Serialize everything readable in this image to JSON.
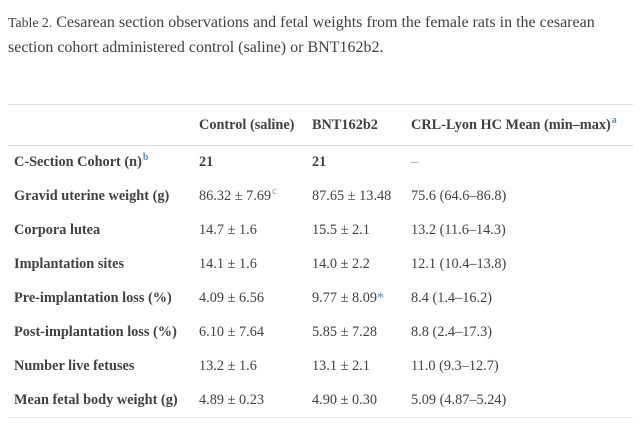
{
  "colors": {
    "accent_blue": "#4a94cc",
    "body_text": "#3e4247",
    "rule_gray": "#d2d5d9",
    "muted_dash": "#8f9499",
    "background": "#ffffff"
  },
  "title": {
    "label": "Table 2.",
    "text": "Cesarean section observations and fetal weights from the female rats in the cesarean section cohort administered control (saline) or BNT162b2."
  },
  "table": {
    "header": {
      "col1": "",
      "col2": "Control (saline)",
      "col3": "BNT162b2",
      "col4": "CRL-Lyon HC Mean (min–max)",
      "col4_sup": "a"
    },
    "rows": [
      {
        "label": "C-Section Cohort (n)",
        "label_sup": "b",
        "values": [
          {
            "text": "21",
            "bold": true
          },
          {
            "text": "21",
            "bold": true
          },
          {
            "text": "–",
            "muted": true
          }
        ]
      },
      {
        "label": "Gravid uterine weight (g)",
        "values": [
          {
            "text": "86.32 ± 7.69",
            "sup": "c"
          },
          {
            "text": "87.65 ± 13.48"
          },
          {
            "text": "75.6 (64.6–86.8)"
          }
        ]
      },
      {
        "label": "Corpora lutea",
        "values": [
          {
            "text": "14.7 ± 1.6"
          },
          {
            "text": "15.5 ± 2.1"
          },
          {
            "text": "13.2 (11.6–14.3)"
          }
        ]
      },
      {
        "label": "Implantation sites",
        "values": [
          {
            "text": "14.1 ± 1.6"
          },
          {
            "text": "14.0 ± 2.2"
          },
          {
            "text": "12.1 (10.4–13.8)"
          }
        ]
      },
      {
        "label": "Pre-implantation loss (%)",
        "values": [
          {
            "text": "4.09 ± 6.56"
          },
          {
            "text": "9.77 ± 8.09",
            "mark": "*"
          },
          {
            "text": "8.4 (1.4–16.2)"
          }
        ]
      },
      {
        "label": "Post-implantation loss (%)",
        "values": [
          {
            "text": "6.10 ± 7.64"
          },
          {
            "text": "5.85 ± 7.28"
          },
          {
            "text": "8.8 (2.4–17.3)"
          }
        ]
      },
      {
        "label": "Number live fetuses",
        "values": [
          {
            "text": "13.2 ± 1.6"
          },
          {
            "text": "13.1 ± 2.1"
          },
          {
            "text": "11.0 (9.3–12.7)"
          }
        ]
      },
      {
        "label": "Mean fetal body weight (g)",
        "values": [
          {
            "text": "4.89 ± 0.23"
          },
          {
            "text": "4.90 ± 0.30"
          },
          {
            "text": "5.09 (4.87–5.24)"
          }
        ]
      }
    ]
  }
}
